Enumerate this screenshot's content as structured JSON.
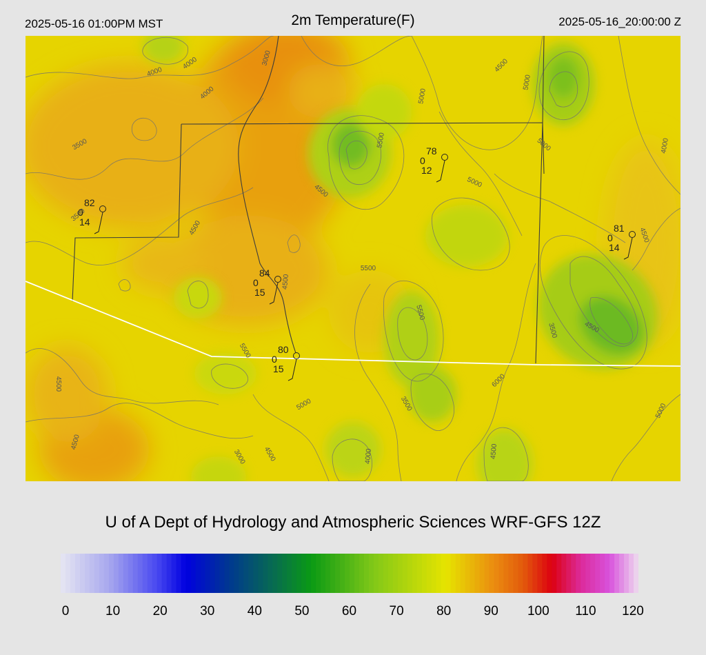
{
  "header": {
    "local_time": "2025-05-16 01:00PM MST",
    "title": "2m Temperature(F)",
    "utc_time": "2025-05-16_20:00:00 Z"
  },
  "credit": "U of A Dept of Hydrology and Atmospheric Sciences WRF-GFS 12Z",
  "colorbar": {
    "ticks": [
      "0",
      "10",
      "20",
      "30",
      "40",
      "50",
      "60",
      "70",
      "80",
      "90",
      "100",
      "110",
      "120"
    ],
    "stops": [
      {
        "value": 0,
        "color": "#e6e6f2"
      },
      {
        "value": 10,
        "color": "#a8a8ee"
      },
      {
        "value": 20,
        "color": "#4848f0"
      },
      {
        "value": 26,
        "color": "#0000e0"
      },
      {
        "value": 35,
        "color": "#003890"
      },
      {
        "value": 45,
        "color": "#08704a"
      },
      {
        "value": 52,
        "color": "#0a9a14"
      },
      {
        "value": 65,
        "color": "#82c818"
      },
      {
        "value": 80,
        "color": "#e6e400"
      },
      {
        "value": 90,
        "color": "#eb8c10"
      },
      {
        "value": 96,
        "color": "#e25a0c"
      },
      {
        "value": 102,
        "color": "#dc0010"
      },
      {
        "value": 108,
        "color": "#dc2a9a"
      },
      {
        "value": 114,
        "color": "#d852dc"
      },
      {
        "value": 120,
        "color": "#eedcee"
      }
    ]
  },
  "contour_labels": [
    "4000",
    "4000",
    "3000",
    "4000",
    "3500",
    "3500",
    "4500",
    "5000",
    "5000",
    "5500",
    "4500",
    "5000",
    "4000",
    "4500",
    "5000",
    "4500",
    "5500",
    "3500",
    "4500",
    "5500",
    "6000",
    "4500",
    "5000",
    "3500",
    "4500",
    "3000",
    "4500",
    "4000",
    "5000",
    "4500",
    "5500",
    "4500",
    "4000"
  ],
  "stations": [
    {
      "name": "station-west",
      "temp": "82",
      "wind": "0",
      "dew": "14"
    },
    {
      "name": "station-north",
      "temp": "78",
      "wind": "0",
      "dew": "12"
    },
    {
      "name": "station-east",
      "temp": "81",
      "wind": "0",
      "dew": "14"
    },
    {
      "name": "station-center",
      "temp": "84",
      "wind": "0",
      "dew": "15"
    },
    {
      "name": "station-south",
      "temp": "80",
      "wind": "0",
      "dew": "15"
    }
  ]
}
